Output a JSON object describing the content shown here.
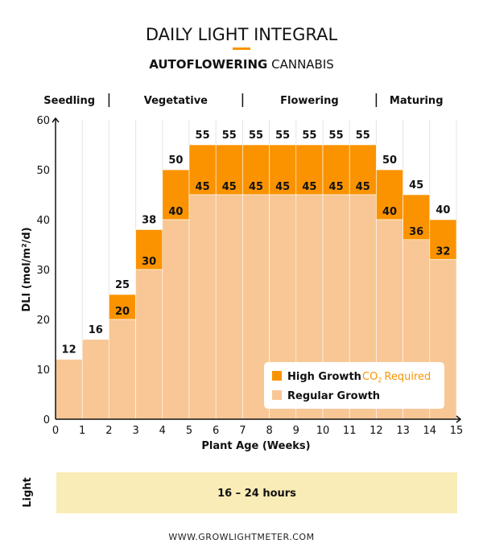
{
  "header": {
    "title": "DAILY LIGHT INTEGRAL",
    "subtitle_bold": "AUTOFLOWERING",
    "subtitle_rest": "CANNABIS"
  },
  "phases": [
    {
      "label": "Seedling",
      "start": 0,
      "end": 2
    },
    {
      "label": "Vegetative",
      "start": 2,
      "end": 7
    },
    {
      "label": "Flowering",
      "start": 7,
      "end": 12
    },
    {
      "label": "Maturing",
      "start": 12,
      "end": 15
    }
  ],
  "legend": {
    "high_label": "High Growth",
    "co2_prefix": "CO",
    "co2_sub": "2",
    "co2_suffix": "Required",
    "regular_label": "Regular Growth"
  },
  "light": {
    "label": "Light",
    "value": "16 – 24 hours"
  },
  "footer": "WWW.GROWLIGHTMETER.COM",
  "colors": {
    "high": "#fb9300",
    "regular": "#f8c795",
    "accent": "#fb9300",
    "light_band": "#f9ecb6"
  },
  "chart_data": {
    "type": "bar",
    "title": "DAILY LIGHT INTEGRAL",
    "xlabel": "Plant Age (Weeks)",
    "ylabel": "DLI (mol/m²/d)",
    "xlim": [
      0,
      15
    ],
    "ylim": [
      0,
      60
    ],
    "xticks": [
      "0",
      "1",
      "2",
      "3",
      "4",
      "5",
      "6",
      "7",
      "8",
      "9",
      "10",
      "11",
      "12",
      "13",
      "14",
      "15"
    ],
    "yticks": [
      "0",
      "10",
      "20",
      "30",
      "40",
      "50",
      "60"
    ],
    "categories": [
      "0-1",
      "1-2",
      "2-3",
      "3-4",
      "4-5",
      "5-6",
      "6-7",
      "7-8",
      "8-9",
      "9-10",
      "10-11",
      "11-12",
      "12-13",
      "13-14",
      "14-15"
    ],
    "series": [
      {
        "name": "Regular Growth",
        "values": [
          12,
          16,
          20,
          30,
          40,
          45,
          45,
          45,
          45,
          45,
          45,
          45,
          40,
          36,
          32
        ]
      },
      {
        "name": "High Growth",
        "values": [
          null,
          null,
          25,
          38,
          50,
          55,
          55,
          55,
          55,
          55,
          55,
          55,
          50,
          45,
          40
        ]
      }
    ],
    "legend_position": "bottom-right"
  }
}
